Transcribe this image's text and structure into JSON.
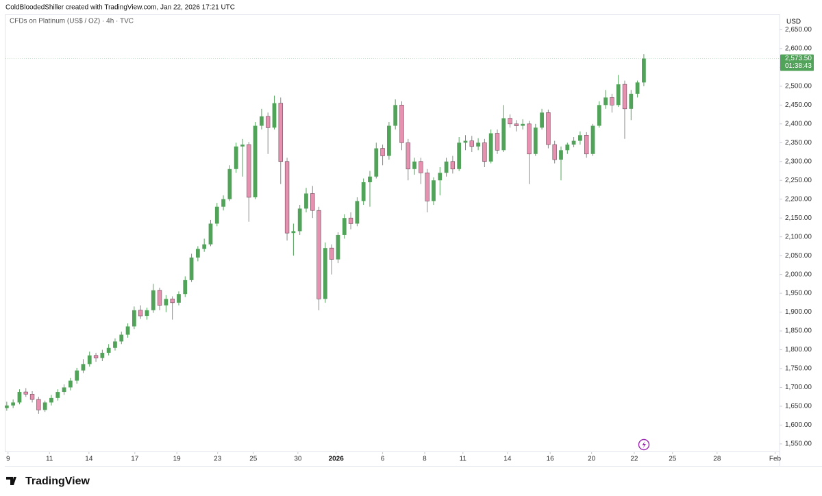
{
  "header": "ColdBloodedShiller created with TradingView.com, Jan 22, 2026 17:21 UTC",
  "footer": {
    "logo": "TradingView"
  },
  "chart_data": {
    "type": "candlestick",
    "title": "CFDs on Platinum (US$ / OZ) · 4h · TVC",
    "y_axis_unit": "USD",
    "up_color": "#52a35a",
    "down_color": "#e691b0",
    "grid": false,
    "last_price": {
      "value": 2573.5,
      "label": "2,573.50"
    },
    "countdown": "01:38:43",
    "xlim": [
      -0.2,
      121.3
    ],
    "ylim": [
      1528,
      2689
    ],
    "xticks": [
      {
        "value": 0.2,
        "label": "9"
      },
      {
        "value": 6.7,
        "label": "11"
      },
      {
        "value": 12.9,
        "label": "14"
      },
      {
        "value": 20.1,
        "label": "17"
      },
      {
        "value": 26.7,
        "label": "19"
      },
      {
        "value": 33.1,
        "label": "23"
      },
      {
        "value": 38.7,
        "label": "25"
      },
      {
        "value": 45.7,
        "label": "30"
      },
      {
        "value": 51.7,
        "label": "2026"
      },
      {
        "value": 59.0,
        "label": "6"
      },
      {
        "value": 65.6,
        "label": "8"
      },
      {
        "value": 71.6,
        "label": "11"
      },
      {
        "value": 78.6,
        "label": "14"
      },
      {
        "value": 85.3,
        "label": "16"
      },
      {
        "value": 91.8,
        "label": "20"
      },
      {
        "value": 98.5,
        "label": "22"
      },
      {
        "value": 104.5,
        "label": "25"
      },
      {
        "value": 111.5,
        "label": "28"
      },
      {
        "value": 120.6,
        "label": "Feb"
      }
    ],
    "yticks": [
      {
        "value": 1550,
        "label": "1,550.00"
      },
      {
        "value": 1600,
        "label": "1,600.00"
      },
      {
        "value": 1650,
        "label": "1,650.00"
      },
      {
        "value": 1700,
        "label": "1,700.00"
      },
      {
        "value": 1750,
        "label": "1,750.00"
      },
      {
        "value": 1800,
        "label": "1,800.00"
      },
      {
        "value": 1850,
        "label": "1,850.00"
      },
      {
        "value": 1900,
        "label": "1,900.00"
      },
      {
        "value": 1950,
        "label": "1,950.00"
      },
      {
        "value": 2000,
        "label": "2,000.00"
      },
      {
        "value": 2050,
        "label": "2,050.00"
      },
      {
        "value": 2100,
        "label": "2,100.00"
      },
      {
        "value": 2150,
        "label": "2,150.00"
      },
      {
        "value": 2200,
        "label": "2,200.00"
      },
      {
        "value": 2250,
        "label": "2,250.00"
      },
      {
        "value": 2300,
        "label": "2,300.00"
      },
      {
        "value": 2350,
        "label": "2,350.00"
      },
      {
        "value": 2400,
        "label": "2,400.00"
      },
      {
        "value": 2450,
        "label": "2,450.00"
      },
      {
        "value": 2500,
        "label": "2,500.00"
      },
      {
        "value": 2550,
        "label": "2,550.00"
      },
      {
        "value": 2600,
        "label": "2,600.00"
      },
      {
        "value": 2650,
        "label": "2,650.00"
      }
    ],
    "ohlc": [
      [
        1645,
        1662,
        1638,
        1652
      ],
      [
        1652,
        1668,
        1645,
        1660
      ],
      [
        1660,
        1695,
        1655,
        1688
      ],
      [
        1688,
        1698,
        1675,
        1682
      ],
      [
        1682,
        1690,
        1660,
        1668
      ],
      [
        1668,
        1675,
        1630,
        1640
      ],
      [
        1640,
        1665,
        1635,
        1660
      ],
      [
        1660,
        1680,
        1652,
        1672
      ],
      [
        1672,
        1695,
        1665,
        1688
      ],
      [
        1688,
        1708,
        1680,
        1700
      ],
      [
        1700,
        1725,
        1692,
        1718
      ],
      [
        1718,
        1752,
        1710,
        1745
      ],
      [
        1745,
        1775,
        1738,
        1762
      ],
      [
        1762,
        1795,
        1755,
        1785
      ],
      [
        1785,
        1792,
        1768,
        1778
      ],
      [
        1778,
        1800,
        1770,
        1792
      ],
      [
        1792,
        1815,
        1785,
        1805
      ],
      [
        1805,
        1830,
        1798,
        1822
      ],
      [
        1822,
        1848,
        1815,
        1840
      ],
      [
        1840,
        1870,
        1832,
        1862
      ],
      [
        1862,
        1915,
        1855,
        1905
      ],
      [
        1905,
        1918,
        1882,
        1890
      ],
      [
        1890,
        1912,
        1880,
        1905
      ],
      [
        1905,
        1975,
        1898,
        1958
      ],
      [
        1958,
        1965,
        1905,
        1918
      ],
      [
        1918,
        1945,
        1900,
        1935
      ],
      [
        1935,
        1942,
        1880,
        1925
      ],
      [
        1925,
        1955,
        1918,
        1948
      ],
      [
        1948,
        1995,
        1940,
        1985
      ],
      [
        1985,
        2055,
        1980,
        2045
      ],
      [
        2045,
        2075,
        2035,
        2068
      ],
      [
        2068,
        2095,
        2060,
        2080
      ],
      [
        2080,
        2145,
        2075,
        2135
      ],
      [
        2135,
        2190,
        2128,
        2180
      ],
      [
        2180,
        2210,
        2170,
        2200
      ],
      [
        2200,
        2290,
        2195,
        2280
      ],
      [
        2280,
        2350,
        2270,
        2340
      ],
      [
        2340,
        2360,
        2260,
        2345
      ],
      [
        2345,
        2352,
        2140,
        2205
      ],
      [
        2205,
        2405,
        2200,
        2395
      ],
      [
        2395,
        2440,
        2385,
        2420
      ],
      [
        2420,
        2430,
        2320,
        2390
      ],
      [
        2390,
        2475,
        2385,
        2455
      ],
      [
        2455,
        2470,
        2240,
        2300
      ],
      [
        2300,
        2310,
        2090,
        2110
      ],
      [
        2110,
        2135,
        2050,
        2115
      ],
      [
        2115,
        2185,
        2105,
        2175
      ],
      [
        2175,
        2230,
        2165,
        2215
      ],
      [
        2215,
        2235,
        2150,
        2170
      ],
      [
        2170,
        2180,
        1905,
        1935
      ],
      [
        1935,
        2085,
        1925,
        2070
      ],
      [
        2070,
        2080,
        2000,
        2040
      ],
      [
        2040,
        2112,
        2030,
        2105
      ],
      [
        2105,
        2160,
        2095,
        2150
      ],
      [
        2150,
        2165,
        2120,
        2135
      ],
      [
        2135,
        2205,
        2128,
        2195
      ],
      [
        2195,
        2255,
        2185,
        2245
      ],
      [
        2245,
        2275,
        2180,
        2260
      ],
      [
        2260,
        2350,
        2255,
        2335
      ],
      [
        2335,
        2345,
        2290,
        2315
      ],
      [
        2315,
        2405,
        2305,
        2395
      ],
      [
        2395,
        2465,
        2385,
        2450
      ],
      [
        2450,
        2460,
        2330,
        2350
      ],
      [
        2350,
        2360,
        2250,
        2280
      ],
      [
        2280,
        2310,
        2265,
        2300
      ],
      [
        2300,
        2310,
        2240,
        2270
      ],
      [
        2270,
        2280,
        2165,
        2195
      ],
      [
        2195,
        2258,
        2185,
        2250
      ],
      [
        2250,
        2285,
        2210,
        2270
      ],
      [
        2270,
        2310,
        2260,
        2300
      ],
      [
        2300,
        2315,
        2268,
        2280
      ],
      [
        2280,
        2365,
        2275,
        2350
      ],
      [
        2350,
        2370,
        2330,
        2355
      ],
      [
        2355,
        2368,
        2325,
        2340
      ],
      [
        2340,
        2362,
        2330,
        2350
      ],
      [
        2350,
        2360,
        2285,
        2300
      ],
      [
        2300,
        2385,
        2295,
        2375
      ],
      [
        2375,
        2385,
        2320,
        2330
      ],
      [
        2330,
        2450,
        2325,
        2415
      ],
      [
        2415,
        2425,
        2390,
        2400
      ],
      [
        2400,
        2410,
        2380,
        2395
      ],
      [
        2395,
        2412,
        2385,
        2400
      ],
      [
        2400,
        2408,
        2240,
        2320
      ],
      [
        2320,
        2400,
        2315,
        2390
      ],
      [
        2390,
        2440,
        2385,
        2430
      ],
      [
        2430,
        2438,
        2335,
        2345
      ],
      [
        2345,
        2355,
        2295,
        2305
      ],
      [
        2305,
        2340,
        2250,
        2330
      ],
      [
        2330,
        2350,
        2320,
        2345
      ],
      [
        2345,
        2365,
        2338,
        2355
      ],
      [
        2355,
        2380,
        2345,
        2370
      ],
      [
        2370,
        2378,
        2310,
        2320
      ],
      [
        2320,
        2400,
        2315,
        2395
      ],
      [
        2395,
        2460,
        2390,
        2450
      ],
      [
        2450,
        2490,
        2440,
        2470
      ],
      [
        2470,
        2480,
        2430,
        2450
      ],
      [
        2450,
        2530,
        2445,
        2505
      ],
      [
        2505,
        2515,
        2360,
        2440
      ],
      [
        2440,
        2490,
        2410,
        2480
      ],
      [
        2480,
        2515,
        2470,
        2510
      ],
      [
        2510,
        2585,
        2500,
        2573.5
      ]
    ]
  }
}
